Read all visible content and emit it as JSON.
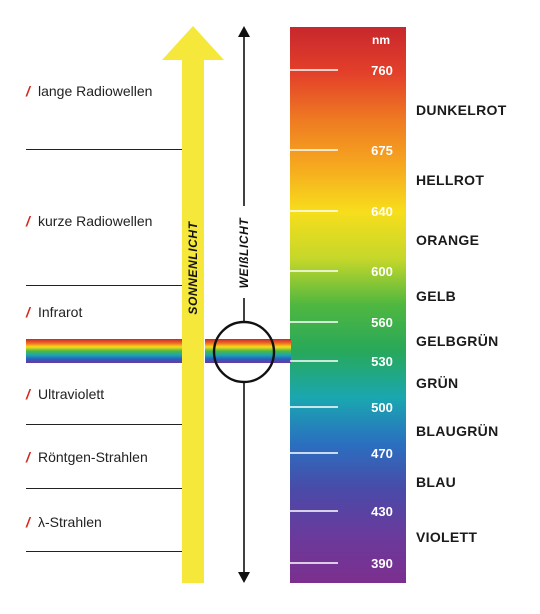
{
  "wave_types": [
    {
      "label": "lange Radiowellen"
    },
    {
      "label": "kurze Radiowellen"
    },
    {
      "label": "Infrarot"
    },
    {
      "label": "Ultraviolett"
    },
    {
      "label": "Röntgen-Strahlen"
    },
    {
      "label": "λ-Strahlen"
    }
  ],
  "marker_glyph": "/",
  "sunlight_label": "SONNENLICHT",
  "whitelight_label": "WEIßLICHT",
  "spectrum": {
    "unit_label": "nm",
    "ticks": [
      "760",
      "675",
      "640",
      "600",
      "560",
      "530",
      "500",
      "470",
      "430",
      "390"
    ],
    "color_names": [
      "DUNKELROT",
      "HELLROT",
      "ORANGE",
      "GELB",
      "GELBGRÜN",
      "GRÜN",
      "BLAUGRÜN",
      "BLAU",
      "VIOLETT"
    ]
  },
  "colors": {
    "sunlight_arrow": "#f5e83a",
    "accent_mark": "#d0281f",
    "spectrum_stops": [
      "#c8272d",
      "#e3402a",
      "#ef7a22",
      "#f6a81f",
      "#f7de1c",
      "#c5d72a",
      "#4fb740",
      "#28a85a",
      "#1aa7b0",
      "#2a6fc0",
      "#4a4aa8",
      "#6a3a9c",
      "#7c2f8e"
    ]
  }
}
